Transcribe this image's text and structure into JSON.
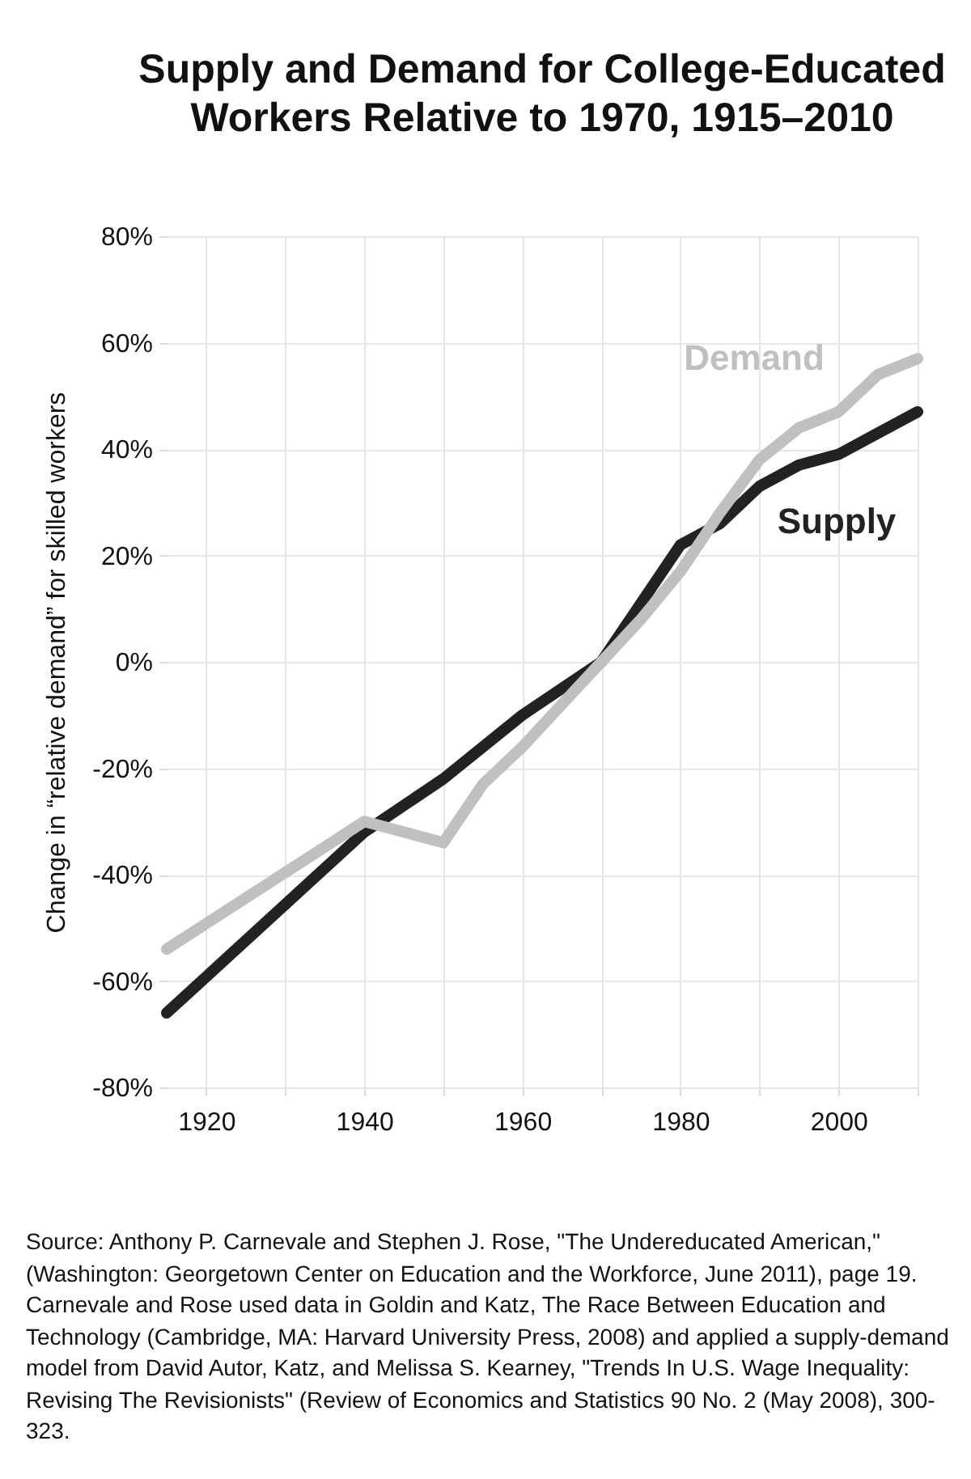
{
  "chart_data": {
    "type": "line",
    "title": "Supply and Demand for College-Educated Workers Relative to 1970, 1915–2010",
    "ylabel": "Change in “relative demand” for skilled workers",
    "xlim": [
      1915,
      2010
    ],
    "xticks": [
      1920,
      {
        "value": 1930,
        "label": null
      },
      1940,
      {
        "value": 1950,
        "label": null
      },
      1960,
      {
        "value": 1970,
        "label": null
      },
      1980,
      {
        "value": 1990,
        "label": null
      },
      2000,
      {
        "value": 2010,
        "label": null
      }
    ],
    "ylim": [
      -80,
      80
    ],
    "yticks": [
      {
        "value": -80,
        "label": "-80%"
      },
      {
        "value": -60,
        "label": "-60%"
      },
      {
        "value": -40,
        "label": "-40%"
      },
      {
        "value": -20,
        "label": "-20%"
      },
      {
        "value": 0,
        "label": "0%"
      },
      {
        "value": 20,
        "label": "20%"
      },
      {
        "value": 40,
        "label": "40%"
      },
      {
        "value": 60,
        "label": "60%"
      },
      {
        "value": 80,
        "label": "80%"
      }
    ],
    "grid": true,
    "legend": false,
    "marker": "none",
    "line_style": "solid",
    "series": [
      {
        "name": "Supply",
        "color": "#222222",
        "x": [
          1915,
          1940,
          1950,
          1960,
          1970,
          1980,
          1985,
          1990,
          1995,
          2000,
          2005,
          2010
        ],
        "values": [
          -66,
          -32,
          -22,
          -10,
          0,
          22,
          26,
          33,
          37,
          39,
          43,
          47
        ]
      },
      {
        "name": "Demand",
        "color": "#c0c0c0",
        "x": [
          1915,
          1940,
          1950,
          1955,
          1960,
          1965,
          1970,
          1975,
          1980,
          1985,
          1990,
          1995,
          2000,
          2005,
          2010
        ],
        "values": [
          -54,
          -30,
          -34,
          -23,
          -16,
          -8,
          0,
          8,
          17,
          28,
          38,
          44,
          47,
          54,
          57
        ]
      }
    ],
    "annotations": [
      "Source: Anthony P. Carnevale and Stephen J. Rose, \"The Undereducated American,\" (Washington: Georgetown Center on Education and the Workforce, June 2011), page 19. Carnevale and Rose used data in Goldin and Katz, The Race Between Education and Technology (Cambridge, MA: Harvard University Press, 2008) and applied a supply-demand model from David Autor, Katz, and Melissa S. Kearney, \"Trends In U.S. Wage Inequality: Revising The Revisionists\" (Review of Economics and Statistics 90 No. 2 (May 2008), 300-323."
    ]
  }
}
